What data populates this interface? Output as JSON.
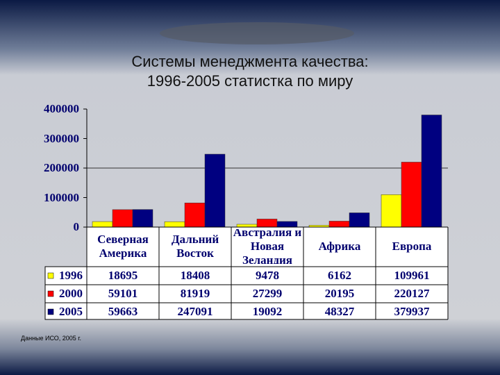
{
  "chart_data": {
    "type": "bar",
    "title": "Системы менеджмента качества:",
    "subtitle": "1996-2005 статистка по миру",
    "categories": [
      "Северная Америка",
      "Дальний Восток",
      "Австралия и Новая Зеландия",
      "Африка",
      "Европа"
    ],
    "series": [
      {
        "name": "1996",
        "color": "#ffff00",
        "values": [
          18695,
          18408,
          9478,
          6162,
          109961
        ]
      },
      {
        "name": "2000",
        "color": "#ff0000",
        "values": [
          59101,
          81919,
          27299,
          20195,
          220127
        ]
      },
      {
        "name": "2005",
        "color": "#000080",
        "values": [
          59663,
          247091,
          19092,
          48327,
          379937
        ]
      }
    ],
    "ylim": [
      0,
      400000
    ],
    "yticks": [
      0,
      100000,
      200000,
      300000,
      400000
    ],
    "grid_values": [
      200000
    ],
    "source": "Данные ИСО, 2005 г."
  }
}
